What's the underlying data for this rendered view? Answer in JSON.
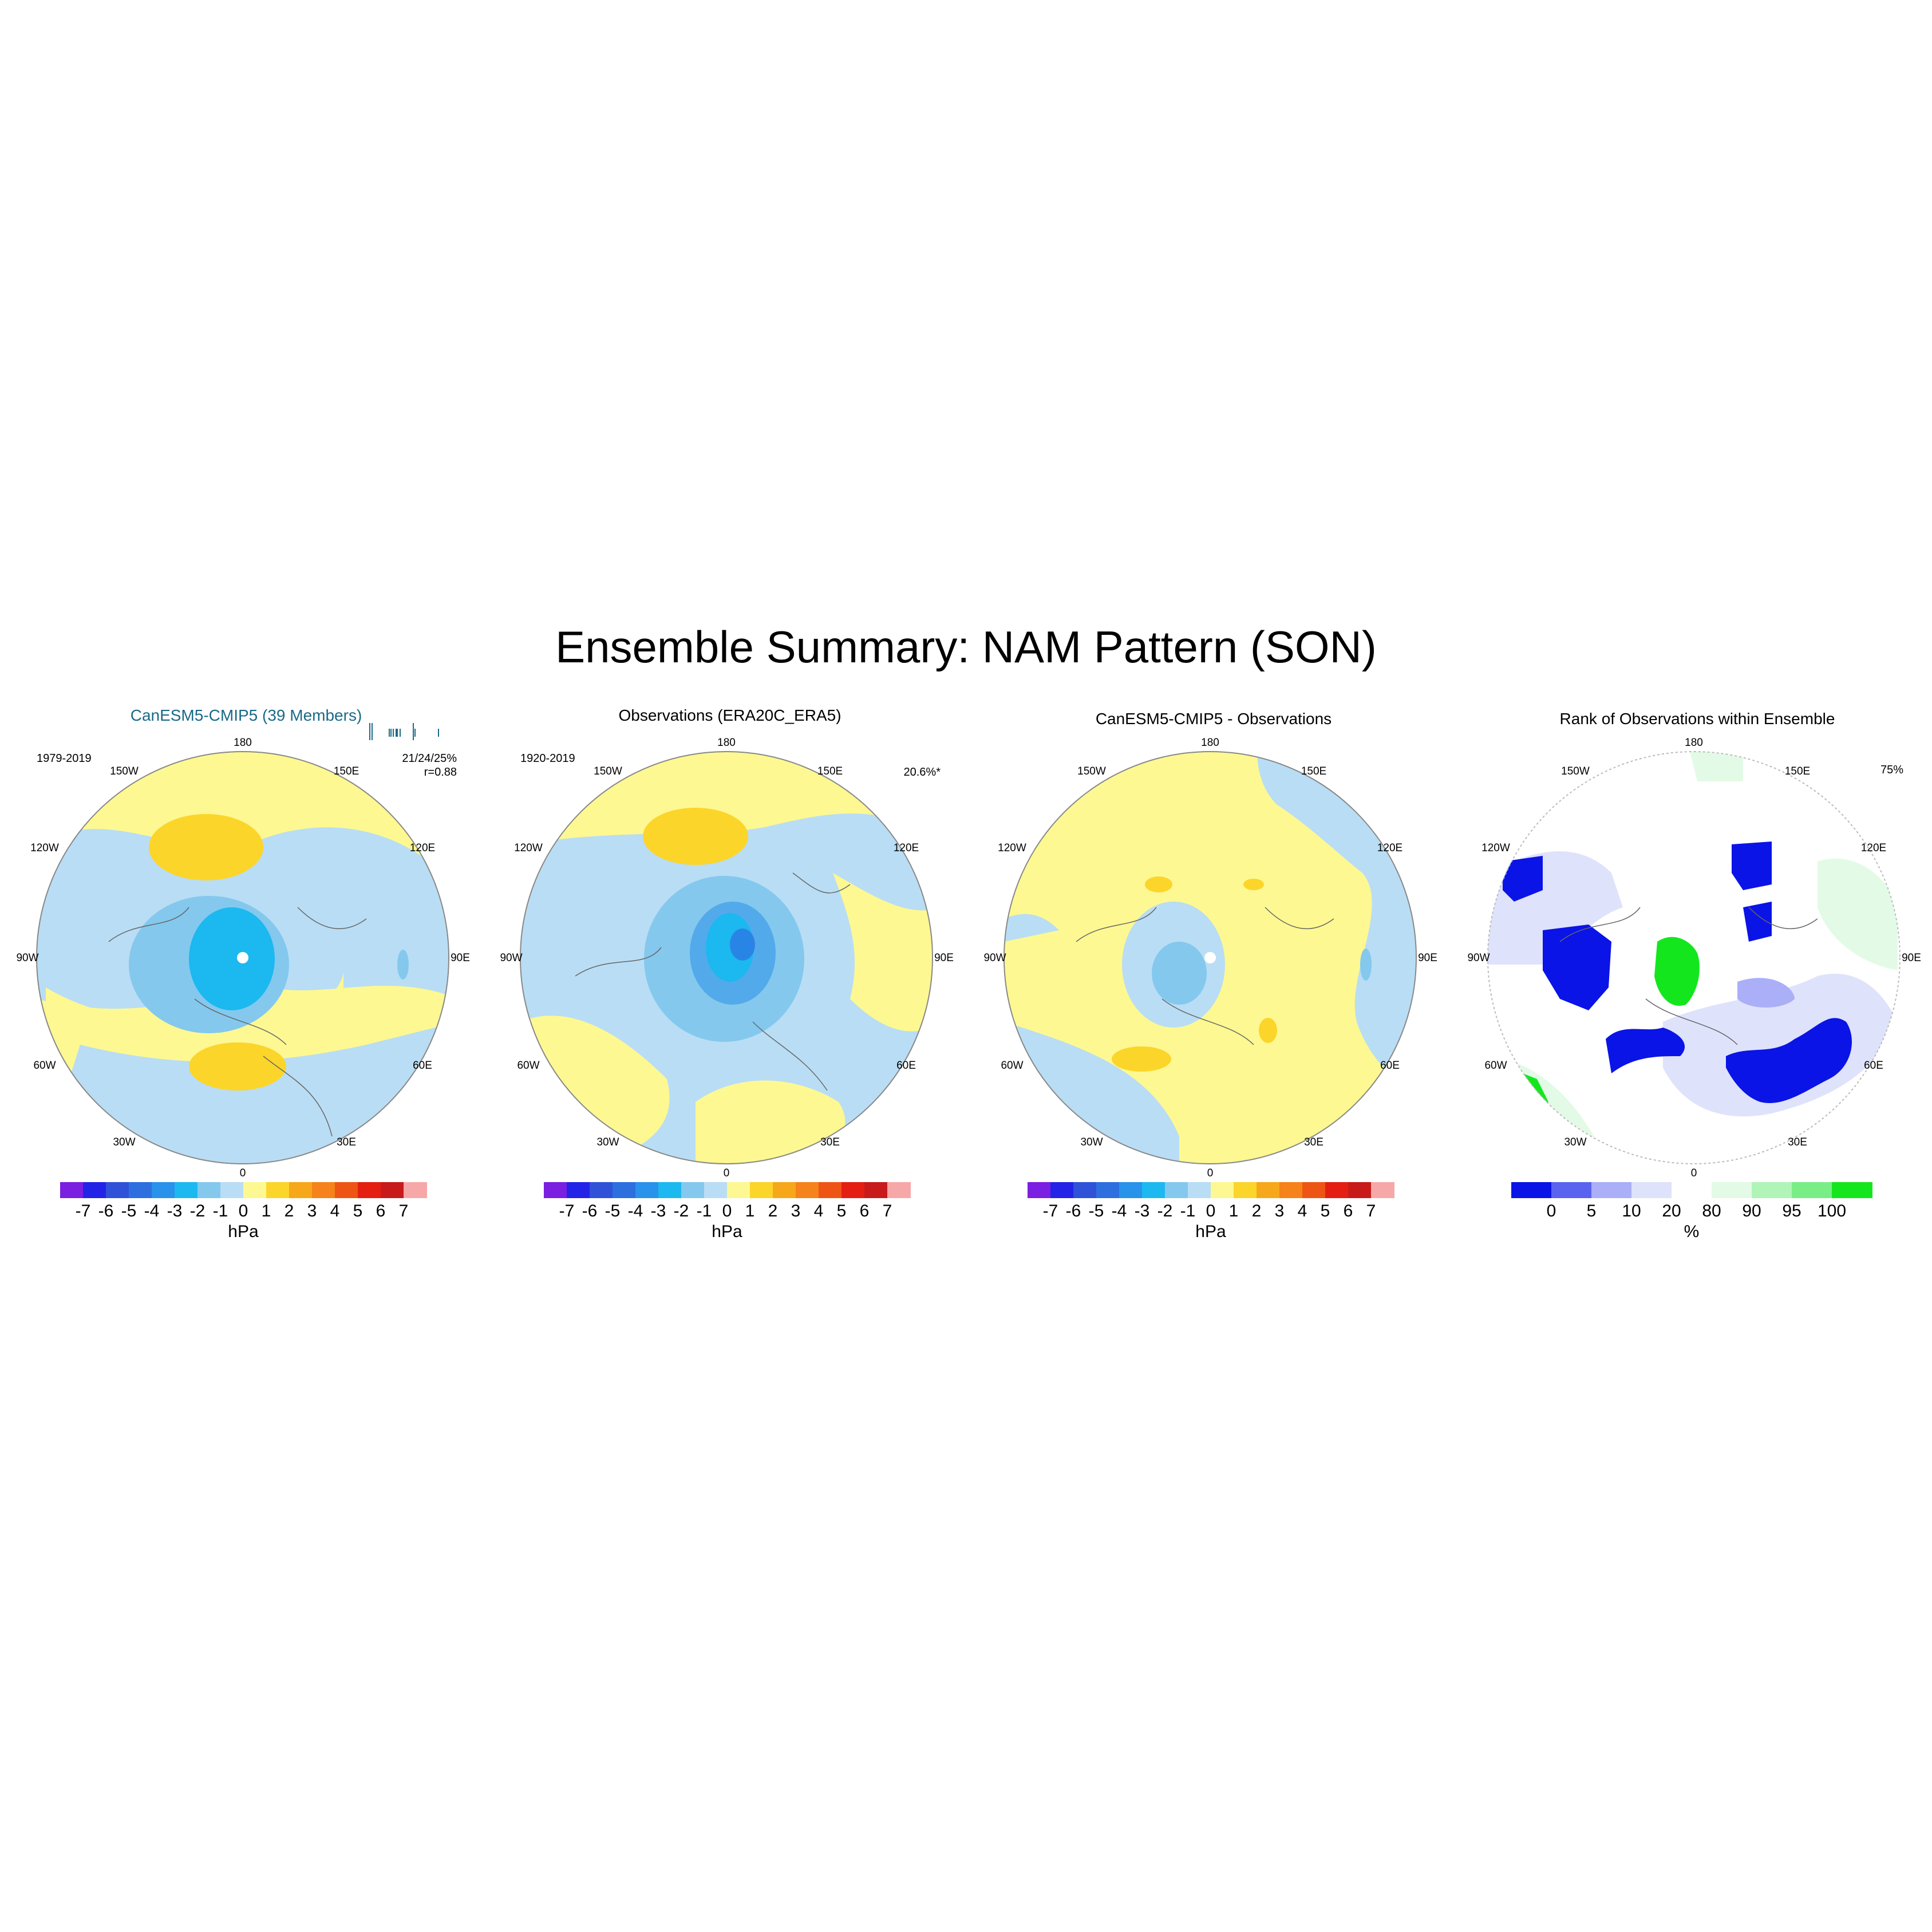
{
  "title": "Ensemble Summary: NAM Pattern (SON)",
  "longitude_labels": [
    "180",
    "150E",
    "120E",
    "90E",
    "60E",
    "30E",
    "0",
    "30W",
    "60W",
    "90W",
    "120W",
    "150W"
  ],
  "anomaly_colorbar": {
    "colors": [
      "#7b1fe0",
      "#2323e8",
      "#2f52d8",
      "#2e6fe0",
      "#2992ea",
      "#1cb8f0",
      "#84c8ee",
      "#b9ddf4",
      "#fdf892",
      "#fcd52a",
      "#f7a71a",
      "#f5821a",
      "#ee5414",
      "#e51e12",
      "#c81a1a",
      "#f6a8a8"
    ],
    "ticks": [
      "-7",
      "-6",
      "-5",
      "-4",
      "-3",
      "-2",
      "-1",
      "0",
      "1",
      "2",
      "3",
      "4",
      "5",
      "6",
      "7"
    ],
    "unit": "hPa"
  },
  "rank_colorbar": {
    "colors": [
      "#0a14e6",
      "#5a63ef",
      "#aaaff7",
      "#dfe2fb",
      "#ffffff",
      "#e3fbe6",
      "#b0f5b7",
      "#7aee86",
      "#14e61e"
    ],
    "ticks": [
      "0",
      "5",
      "10",
      "20",
      "80",
      "90",
      "95",
      "100"
    ],
    "unit": "%"
  },
  "panels": [
    {
      "title": "CanESM5-CMIP5 (39 Members)",
      "period": "1979-2019",
      "stat_line1": "21/24/25%",
      "stat_line2": "r=0.88",
      "rug_positions": [
        0.0,
        0.03,
        0.28,
        0.31,
        0.34,
        0.38,
        0.4,
        0.44,
        0.63,
        0.66,
        1.0
      ]
    },
    {
      "title": "Observations (ERA20C_ERA5)",
      "period": "1920-2019",
      "stat_line1": "20.6%*"
    },
    {
      "title": "CanESM5-CMIP5 - Observations"
    },
    {
      "title": "Rank of Observations within Ensemble",
      "stat_line1": "75%"
    }
  ]
}
